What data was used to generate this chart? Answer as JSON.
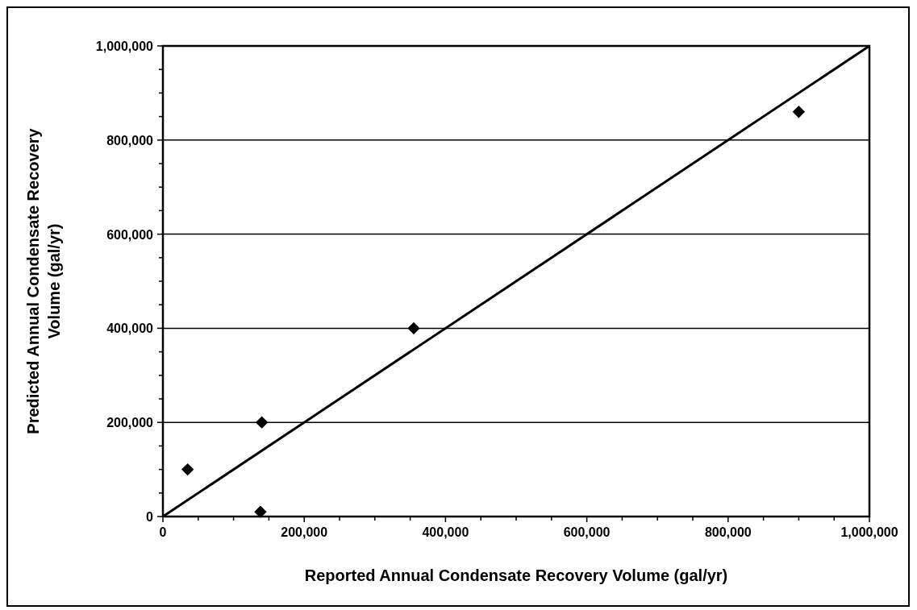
{
  "chart_data": {
    "type": "scatter",
    "xlabel": "Reported Annual Condensate Recovery Volume (gal/yr)",
    "ylabel": "Predicted Annual Condensate Recovery Volume (gal/yr)",
    "series": [
      {
        "color": "#000000",
        "marker": "diamond",
        "x": [
          35000,
          140000,
          138000,
          355000,
          900000
        ],
        "values": [
          100000,
          200000,
          10000,
          400000,
          860000
        ]
      },
      {
        "type": "line",
        "color": "#000000",
        "marker": "none",
        "line_style": "solid",
        "x": [
          0,
          1000000
        ],
        "values": [
          0,
          1000000
        ]
      }
    ],
    "xlim": [
      0,
      1000000
    ],
    "ylim": [
      0,
      1000000
    ],
    "xticks": [
      {
        "value": 0,
        "label": "0"
      },
      {
        "value": 50000,
        "label": null
      },
      {
        "value": 200000,
        "label": "200,000"
      },
      {
        "value": 100000,
        "label": null
      },
      {
        "value": 150000,
        "label": null
      },
      {
        "value": 250000,
        "label": null
      },
      {
        "value": 300000,
        "label": null
      },
      {
        "value": 350000,
        "label": null
      },
      {
        "value": 400000,
        "label": "400,000"
      },
      {
        "value": 450000,
        "label": null
      },
      {
        "value": 500000,
        "label": null
      },
      {
        "value": 550000,
        "label": null
      },
      {
        "value": 600000,
        "label": "600,000"
      },
      {
        "value": 650000,
        "label": null
      },
      {
        "value": 700000,
        "label": null
      },
      {
        "value": 750000,
        "label": null
      },
      {
        "value": 800000,
        "label": "800,000"
      },
      {
        "value": 850000,
        "label": null
      },
      {
        "value": 900000,
        "label": null
      },
      {
        "value": 950000,
        "label": null
      },
      {
        "value": 1000000,
        "label": "1,000,000"
      }
    ],
    "yticks": [
      {
        "value": 0,
        "label": "0"
      },
      {
        "value": 50000,
        "label": null
      },
      {
        "value": 100000,
        "label": null
      },
      {
        "value": 150000,
        "label": null
      },
      {
        "value": 200000,
        "label": "200,000"
      },
      {
        "value": 250000,
        "label": null
      },
      {
        "value": 300000,
        "label": null
      },
      {
        "value": 350000,
        "label": null
      },
      {
        "value": 400000,
        "label": "400,000"
      },
      {
        "value": 450000,
        "label": null
      },
      {
        "value": 500000,
        "label": null
      },
      {
        "value": 550000,
        "label": null
      },
      {
        "value": 600000,
        "label": "600,000"
      },
      {
        "value": 650000,
        "label": null
      },
      {
        "value": 700000,
        "label": null
      },
      {
        "value": 750000,
        "label": null
      },
      {
        "value": 800000,
        "label": "800,000"
      },
      {
        "value": 850000,
        "label": null
      },
      {
        "value": 900000,
        "label": null
      },
      {
        "value": 950000,
        "label": null
      },
      {
        "value": 1000000,
        "label": "1,000,000"
      }
    ],
    "grid": "y"
  }
}
